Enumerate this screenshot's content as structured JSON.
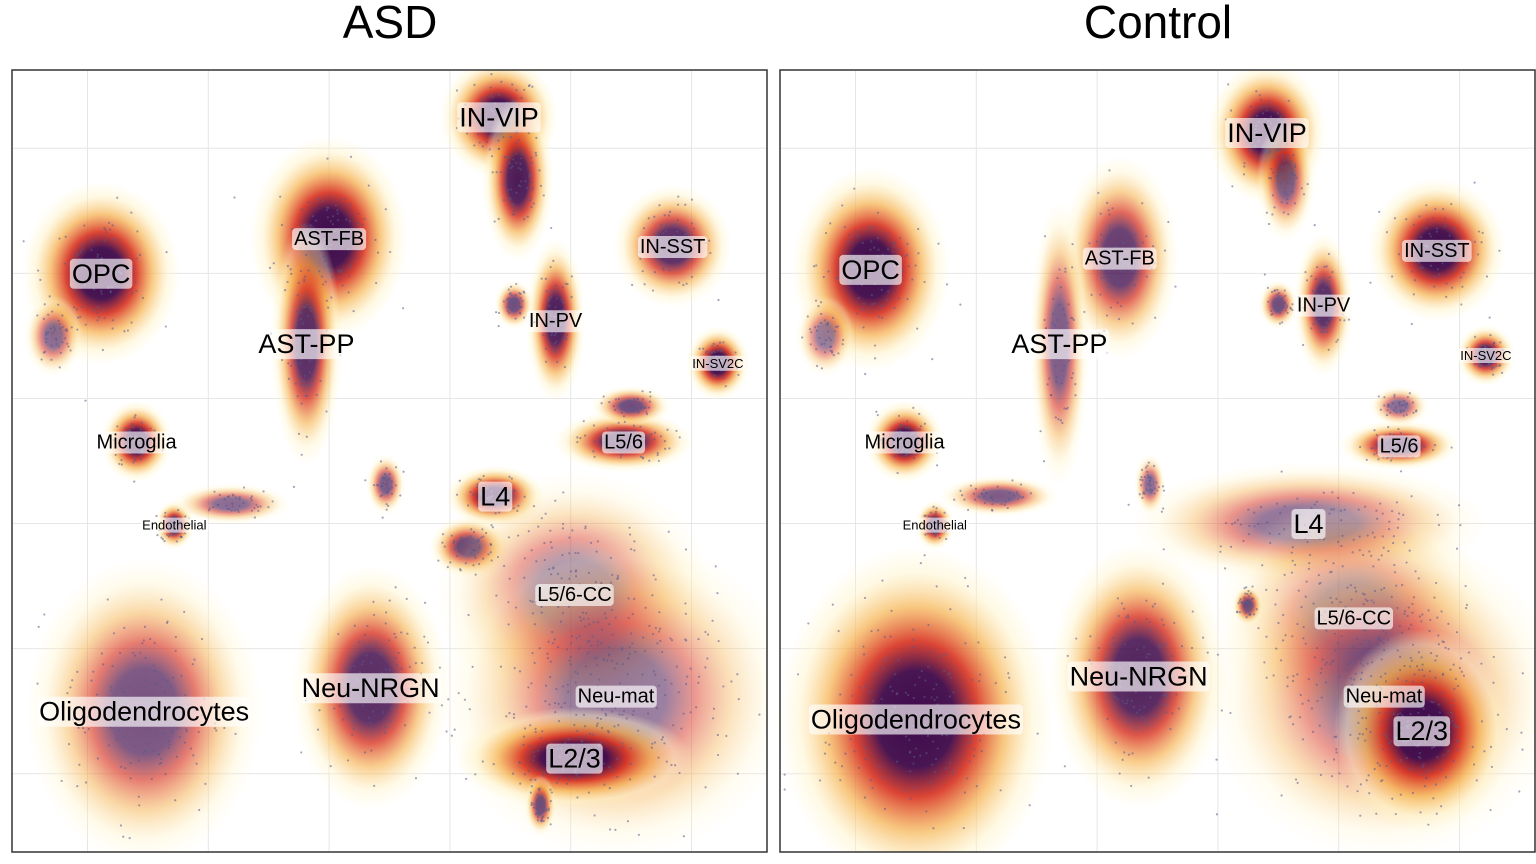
{
  "chart_data": {
    "type": "scatter",
    "subtype": "umap-density",
    "grid": true,
    "legend": "none",
    "colors": {
      "density_low": "#fff3c4",
      "density_mid": "#f5b04a",
      "density_high": "#d7301f",
      "density_peak": "#3f0a4a",
      "points": "#5a5a8a",
      "gridline": "#e6e6e6",
      "frame": "#333333",
      "label_bg": "#ffffff"
    },
    "panels": [
      {
        "title": "ASD",
        "clusters": [
          {
            "label": "IN-VIP",
            "label_size": "l",
            "cx": 0.645,
            "cy": 0.94,
            "sx": 0.03,
            "sy": 0.03,
            "weight": 1.0
          },
          {
            "label": "IN-VIP tail",
            "cx": 0.67,
            "cy": 0.86,
            "sx": 0.018,
            "sy": 0.04,
            "weight": 0.9
          },
          {
            "label": "AST-FB",
            "label_size": "m",
            "cx": 0.42,
            "cy": 0.785,
            "sx": 0.04,
            "sy": 0.05,
            "weight": 1.0
          },
          {
            "label": "AST-PP",
            "label_size": "l",
            "cx": 0.39,
            "cy": 0.65,
            "sx": 0.018,
            "sy": 0.06,
            "weight": 0.8
          },
          {
            "label": "IN-SST",
            "label_size": "m",
            "cx": 0.875,
            "cy": 0.775,
            "sx": 0.03,
            "sy": 0.03,
            "weight": 0.8
          },
          {
            "label": "IN-PV",
            "label_size": "m",
            "cx": 0.72,
            "cy": 0.68,
            "sx": 0.015,
            "sy": 0.04,
            "weight": 0.9
          },
          {
            "label": "IN-PV small",
            "cx": 0.665,
            "cy": 0.7,
            "sx": 0.01,
            "sy": 0.012,
            "weight": 0.6
          },
          {
            "label": "OPC",
            "label_size": "l",
            "cx": 0.118,
            "cy": 0.74,
            "sx": 0.04,
            "sy": 0.045,
            "weight": 1.0
          },
          {
            "label": "OPC tail",
            "cx": 0.055,
            "cy": 0.66,
            "sx": 0.015,
            "sy": 0.02,
            "weight": 0.4
          },
          {
            "label": "IN-SV2C",
            "label_size": "s",
            "cx": 0.935,
            "cy": 0.625,
            "sx": 0.016,
            "sy": 0.018,
            "weight": 1.0
          },
          {
            "label": "Microglia",
            "label_size": "m",
            "cx": 0.165,
            "cy": 0.525,
            "sx": 0.018,
            "sy": 0.02,
            "weight": 1.0
          },
          {
            "label": "Endothelial",
            "label_size": "s",
            "cx": 0.215,
            "cy": 0.418,
            "sx": 0.01,
            "sy": 0.012,
            "weight": 0.9
          },
          {
            "label": "Endothelial tail",
            "cx": 0.29,
            "cy": 0.445,
            "sx": 0.03,
            "sy": 0.01,
            "weight": 0.4
          },
          {
            "label": "L5/6",
            "label_size": "m",
            "cx": 0.81,
            "cy": 0.525,
            "sx": 0.035,
            "sy": 0.015,
            "weight": 0.9
          },
          {
            "label": "L5/6 upper",
            "cx": 0.82,
            "cy": 0.57,
            "sx": 0.02,
            "sy": 0.01,
            "weight": 0.6
          },
          {
            "label": "L4",
            "label_size": "l",
            "cx": 0.64,
            "cy": 0.455,
            "sx": 0.025,
            "sy": 0.015,
            "weight": 1.0
          },
          {
            "label": "L4 lower",
            "cx": 0.605,
            "cy": 0.39,
            "sx": 0.02,
            "sy": 0.015,
            "weight": 0.8
          },
          {
            "label": "small blob",
            "cx": 0.495,
            "cy": 0.47,
            "sx": 0.01,
            "sy": 0.015,
            "weight": 0.5
          },
          {
            "label": "L5/6-CC",
            "label_size": "m",
            "cx": 0.745,
            "cy": 0.33,
            "sx": 0.07,
            "sy": 0.06,
            "weight": 0.25
          },
          {
            "label": "Neu-mat",
            "label_size": "m",
            "cx": 0.8,
            "cy": 0.2,
            "sx": 0.09,
            "sy": 0.08,
            "weight": 0.3
          },
          {
            "label": "L2/3",
            "label_size": "l",
            "cx": 0.745,
            "cy": 0.12,
            "sx": 0.06,
            "sy": 0.025,
            "weight": 1.0
          },
          {
            "label": "L2/3 tail",
            "cx": 0.7,
            "cy": 0.06,
            "sx": 0.008,
            "sy": 0.015,
            "weight": 0.6
          },
          {
            "label": "Neu-NRGN",
            "label_size": "l",
            "cx": 0.475,
            "cy": 0.21,
            "sx": 0.04,
            "sy": 0.06,
            "weight": 0.8
          },
          {
            "label": "Oligodendrocytes",
            "label_size": "l",
            "cx": 0.175,
            "cy": 0.18,
            "sx": 0.06,
            "sy": 0.075,
            "weight": 0.55
          }
        ]
      },
      {
        "title": "Control",
        "clusters": [
          {
            "label": "IN-VIP",
            "label_size": "l",
            "cx": 0.645,
            "cy": 0.92,
            "sx": 0.03,
            "sy": 0.035,
            "weight": 1.0
          },
          {
            "label": "IN-VIP tail",
            "cx": 0.67,
            "cy": 0.86,
            "sx": 0.015,
            "sy": 0.03,
            "weight": 0.5
          },
          {
            "label": "AST-FB",
            "label_size": "m",
            "cx": 0.45,
            "cy": 0.76,
            "sx": 0.03,
            "sy": 0.05,
            "weight": 0.7
          },
          {
            "label": "AST-PP",
            "label_size": "l",
            "cx": 0.37,
            "cy": 0.65,
            "sx": 0.015,
            "sy": 0.07,
            "weight": 0.5
          },
          {
            "label": "IN-SST",
            "label_size": "m",
            "cx": 0.87,
            "cy": 0.77,
            "sx": 0.035,
            "sy": 0.035,
            "weight": 1.0
          },
          {
            "label": "IN-PV",
            "label_size": "m",
            "cx": 0.72,
            "cy": 0.7,
            "sx": 0.015,
            "sy": 0.035,
            "weight": 0.8
          },
          {
            "label": "IN-PV small",
            "cx": 0.66,
            "cy": 0.7,
            "sx": 0.01,
            "sy": 0.012,
            "weight": 0.6
          },
          {
            "label": "OPC",
            "label_size": "l",
            "cx": 0.12,
            "cy": 0.745,
            "sx": 0.04,
            "sy": 0.05,
            "weight": 1.0
          },
          {
            "label": "OPC tail",
            "cx": 0.06,
            "cy": 0.66,
            "sx": 0.015,
            "sy": 0.02,
            "weight": 0.3
          },
          {
            "label": "IN-SV2C",
            "label_size": "s",
            "cx": 0.935,
            "cy": 0.635,
            "sx": 0.015,
            "sy": 0.015,
            "weight": 0.9
          },
          {
            "label": "Microglia",
            "label_size": "m",
            "cx": 0.165,
            "cy": 0.525,
            "sx": 0.02,
            "sy": 0.02,
            "weight": 1.0
          },
          {
            "label": "Endothelial",
            "label_size": "s",
            "cx": 0.205,
            "cy": 0.418,
            "sx": 0.01,
            "sy": 0.012,
            "weight": 0.9
          },
          {
            "label": "Endothelial tail",
            "cx": 0.29,
            "cy": 0.455,
            "sx": 0.03,
            "sy": 0.01,
            "weight": 0.5
          },
          {
            "label": "L5/6",
            "label_size": "m",
            "cx": 0.82,
            "cy": 0.52,
            "sx": 0.03,
            "sy": 0.012,
            "weight": 0.9
          },
          {
            "label": "L5/6 upper",
            "cx": 0.82,
            "cy": 0.57,
            "sx": 0.015,
            "sy": 0.01,
            "weight": 0.4
          },
          {
            "label": "L4",
            "label_size": "l",
            "cx": 0.7,
            "cy": 0.42,
            "sx": 0.09,
            "sy": 0.03,
            "weight": 0.35
          },
          {
            "label": "small blob",
            "cx": 0.49,
            "cy": 0.47,
            "sx": 0.008,
            "sy": 0.015,
            "weight": 0.4
          },
          {
            "label": "L5/6-CC",
            "label_size": "m",
            "cx": 0.76,
            "cy": 0.3,
            "sx": 0.07,
            "sy": 0.06,
            "weight": 0.2
          },
          {
            "label": "small red",
            "cx": 0.62,
            "cy": 0.315,
            "sx": 0.008,
            "sy": 0.01,
            "weight": 0.7
          },
          {
            "label": "Neu-mat",
            "label_size": "m",
            "cx": 0.8,
            "cy": 0.2,
            "sx": 0.09,
            "sy": 0.08,
            "weight": 0.3
          },
          {
            "label": "L2/3",
            "label_size": "l",
            "cx": 0.85,
            "cy": 0.155,
            "sx": 0.045,
            "sy": 0.05,
            "weight": 1.0
          },
          {
            "label": "Neu-NRGN",
            "label_size": "l",
            "cx": 0.475,
            "cy": 0.225,
            "sx": 0.045,
            "sy": 0.065,
            "weight": 0.85
          },
          {
            "label": "Oligodendrocytes",
            "label_size": "l",
            "cx": 0.18,
            "cy": 0.17,
            "sx": 0.07,
            "sy": 0.085,
            "weight": 1.0
          }
        ]
      }
    ]
  }
}
